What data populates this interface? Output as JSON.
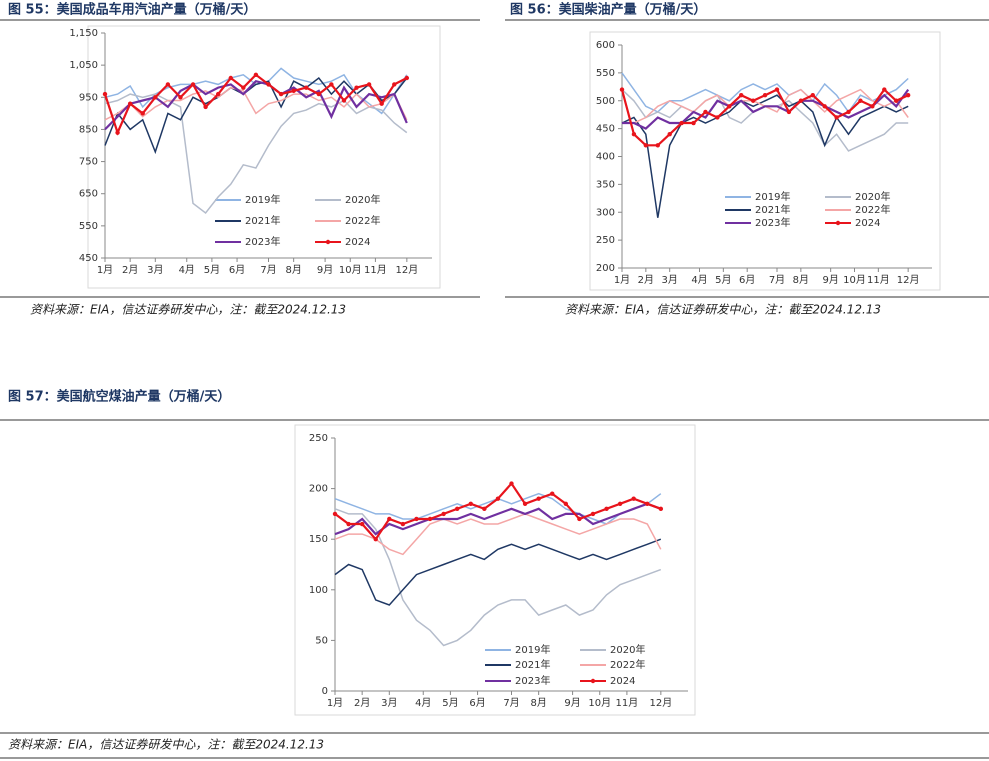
{
  "chart_data": [
    {
      "type": "line",
      "title": "图 55：美国成品车用汽油产量（万桶/天）",
      "source": "资料来源：EIA，信达证券研发中心，注：截至2024.12.13",
      "xlim": [
        1,
        53
      ],
      "xticks": [
        {
          "value": 1,
          "label": "1月"
        },
        {
          "value": 5,
          "label": "2月"
        },
        {
          "value": 9,
          "label": "3月"
        },
        {
          "value": 14,
          "label": "4月"
        },
        {
          "value": 18,
          "label": "5月"
        },
        {
          "value": 22,
          "label": "6月"
        },
        {
          "value": 27,
          "label": "7月"
        },
        {
          "value": 31,
          "label": "8月"
        },
        {
          "value": 36,
          "label": "9月"
        },
        {
          "value": 40,
          "label": "10月"
        },
        {
          "value": 44,
          "label": "11月"
        },
        {
          "value": 49,
          "label": "12月"
        }
      ],
      "ylim": [
        450,
        1150
      ],
      "yticks": [
        450,
        550,
        650,
        750,
        850,
        950,
        {
          "value": 1050,
          "label": "1,050"
        },
        {
          "value": 1150,
          "label": "1,150"
        }
      ],
      "x": [
        1,
        3,
        5,
        7,
        9,
        11,
        13,
        15,
        17,
        19,
        21,
        23,
        25,
        27,
        29,
        31,
        33,
        35,
        37,
        39,
        41,
        43,
        45,
        47,
        49
      ],
      "series": [
        {
          "name": "2019年",
          "color": "#8fb4e3",
          "values": [
            950,
            960,
            985,
            920,
            960,
            980,
            990,
            990,
            1000,
            990,
            1010,
            1020,
            990,
            1000,
            1040,
            1010,
            1000,
            990,
            1000,
            1020,
            960,
            930,
            900,
            960,
            1020
          ]
        },
        {
          "name": "2020年",
          "color": "#b4bccb",
          "values": [
            930,
            940,
            960,
            950,
            960,
            940,
            920,
            620,
            590,
            640,
            680,
            740,
            730,
            800,
            860,
            900,
            910,
            930,
            920,
            940,
            900,
            920,
            910,
            870,
            840
          ]
        },
        {
          "name": "2021年",
          "color": "#1f3864",
          "values": [
            800,
            900,
            850,
            880,
            780,
            900,
            880,
            950,
            930,
            950,
            980,
            960,
            990,
            1000,
            920,
            1000,
            980,
            1010,
            960,
            1000,
            960,
            990,
            940,
            960,
            1010
          ]
        },
        {
          "name": "2022年",
          "color": "#f4a6a6",
          "values": [
            880,
            900,
            930,
            890,
            920,
            940,
            940,
            960,
            970,
            950,
            980,
            970,
            900,
            930,
            940,
            960,
            960,
            940,
            950,
            920,
            960,
            920,
            930,
            960,
            880
          ]
        },
        {
          "name": "2023年",
          "color": "#7030a0",
          "values": [
            850,
            890,
            930,
            940,
            950,
            920,
            970,
            990,
            960,
            980,
            990,
            960,
            1000,
            990,
            960,
            980,
            950,
            970,
            890,
            980,
            920,
            960,
            950,
            960,
            870
          ]
        },
        {
          "name": "2024",
          "color": "#e8141c",
          "values": [
            960,
            840,
            930,
            900,
            950,
            990,
            950,
            990,
            920,
            960,
            1010,
            980,
            1020,
            990,
            960,
            970,
            980,
            960,
            990,
            940,
            980,
            990,
            930,
            990,
            1010
          ]
        }
      ]
    },
    {
      "type": "line",
      "title": "图 56：美国柴油产量（万桶/天）",
      "source": "资料来源：EIA，信达证券研发中心，注：截至2024.12.13",
      "xlim": [
        1,
        53
      ],
      "xticks": [
        {
          "value": 1,
          "label": "1月"
        },
        {
          "value": 5,
          "label": "2月"
        },
        {
          "value": 9,
          "label": "3月"
        },
        {
          "value": 14,
          "label": "4月"
        },
        {
          "value": 18,
          "label": "5月"
        },
        {
          "value": 22,
          "label": "6月"
        },
        {
          "value": 27,
          "label": "7月"
        },
        {
          "value": 31,
          "label": "8月"
        },
        {
          "value": 36,
          "label": "9月"
        },
        {
          "value": 40,
          "label": "10月"
        },
        {
          "value": 44,
          "label": "11月"
        },
        {
          "value": 49,
          "label": "12月"
        }
      ],
      "ylim": [
        200,
        600
      ],
      "yticks": [
        200,
        250,
        300,
        350,
        400,
        450,
        500,
        550,
        600
      ],
      "x": [
        1,
        3,
        5,
        7,
        9,
        11,
        13,
        15,
        17,
        19,
        21,
        23,
        25,
        27,
        29,
        31,
        33,
        35,
        37,
        39,
        41,
        43,
        45,
        47,
        49
      ],
      "series": [
        {
          "name": "2019年",
          "color": "#8fb4e3",
          "values": [
            550,
            520,
            490,
            480,
            500,
            500,
            510,
            520,
            510,
            500,
            520,
            530,
            520,
            530,
            510,
            520,
            500,
            530,
            510,
            480,
            510,
            500,
            510,
            520,
            540
          ]
        },
        {
          "name": "2020年",
          "color": "#b4bccb",
          "values": [
            520,
            500,
            470,
            480,
            470,
            490,
            480,
            500,
            510,
            470,
            460,
            480,
            490,
            490,
            500,
            480,
            460,
            420,
            440,
            410,
            420,
            430,
            440,
            460,
            460
          ]
        },
        {
          "name": "2021年",
          "color": "#1f3864",
          "values": [
            460,
            470,
            440,
            290,
            420,
            460,
            470,
            460,
            470,
            480,
            500,
            490,
            500,
            510,
            490,
            500,
            480,
            420,
            470,
            440,
            470,
            480,
            490,
            480,
            490
          ]
        },
        {
          "name": "2022年",
          "color": "#f4a6a6",
          "values": [
            460,
            460,
            470,
            490,
            500,
            490,
            480,
            500,
            510,
            490,
            500,
            500,
            490,
            480,
            510,
            520,
            500,
            480,
            500,
            510,
            520,
            500,
            490,
            500,
            470
          ]
        },
        {
          "name": "2023年",
          "color": "#7030a0",
          "values": [
            460,
            460,
            450,
            470,
            460,
            460,
            480,
            470,
            500,
            490,
            500,
            480,
            490,
            490,
            480,
            500,
            500,
            490,
            480,
            470,
            480,
            490,
            510,
            490,
            520
          ]
        },
        {
          "name": "2024",
          "color": "#e8141c",
          "values": [
            520,
            440,
            420,
            420,
            440,
            460,
            460,
            480,
            470,
            490,
            510,
            500,
            510,
            520,
            480,
            500,
            510,
            490,
            470,
            480,
            500,
            490,
            520,
            500,
            510
          ]
        }
      ]
    },
    {
      "type": "line",
      "title": "图 57：美国航空煤油产量（万桶/天）",
      "source": "资料来源：EIA，信达证券研发中心，注：截至2024.12.13",
      "xlim": [
        1,
        53
      ],
      "xticks": [
        {
          "value": 1,
          "label": "1月"
        },
        {
          "value": 5,
          "label": "2月"
        },
        {
          "value": 9,
          "label": "3月"
        },
        {
          "value": 14,
          "label": "4月"
        },
        {
          "value": 18,
          "label": "5月"
        },
        {
          "value": 22,
          "label": "6月"
        },
        {
          "value": 27,
          "label": "7月"
        },
        {
          "value": 31,
          "label": "8月"
        },
        {
          "value": 36,
          "label": "9月"
        },
        {
          "value": 40,
          "label": "10月"
        },
        {
          "value": 44,
          "label": "11月"
        },
        {
          "value": 49,
          "label": "12月"
        }
      ],
      "ylim": [
        0,
        250
      ],
      "yticks": [
        0,
        50,
        100,
        150,
        200,
        250
      ],
      "x": [
        1,
        3,
        5,
        7,
        9,
        11,
        13,
        15,
        17,
        19,
        21,
        23,
        25,
        27,
        29,
        31,
        33,
        35,
        37,
        39,
        41,
        43,
        45,
        47,
        49
      ],
      "series": [
        {
          "name": "2019年",
          "color": "#8fb4e3",
          "values": [
            190,
            185,
            180,
            175,
            175,
            170,
            170,
            175,
            180,
            185,
            180,
            185,
            190,
            185,
            190,
            195,
            190,
            180,
            175,
            170,
            165,
            175,
            180,
            185,
            195
          ]
        },
        {
          "name": "2020年",
          "color": "#b4bccb",
          "values": [
            180,
            175,
            175,
            160,
            130,
            90,
            70,
            60,
            45,
            50,
            60,
            75,
            85,
            90,
            90,
            75,
            80,
            85,
            75,
            80,
            95,
            105,
            110,
            115,
            120
          ]
        },
        {
          "name": "2021年",
          "color": "#1f3864",
          "values": [
            115,
            125,
            120,
            90,
            85,
            100,
            115,
            120,
            125,
            130,
            135,
            130,
            140,
            145,
            140,
            145,
            140,
            135,
            130,
            135,
            130,
            135,
            140,
            145,
            150
          ]
        },
        {
          "name": "2022年",
          "color": "#f4a6a6",
          "values": [
            150,
            155,
            155,
            150,
            140,
            135,
            150,
            165,
            170,
            165,
            170,
            165,
            165,
            170,
            175,
            170,
            165,
            160,
            155,
            160,
            165,
            170,
            170,
            165,
            140
          ]
        },
        {
          "name": "2023年",
          "color": "#7030a0",
          "values": [
            155,
            160,
            170,
            155,
            165,
            160,
            165,
            170,
            170,
            170,
            175,
            170,
            175,
            180,
            175,
            180,
            170,
            175,
            175,
            165,
            170,
            175,
            180,
            185,
            180
          ]
        },
        {
          "name": "2024",
          "color": "#e8141c",
          "values": [
            175,
            165,
            165,
            150,
            170,
            165,
            170,
            170,
            175,
            180,
            185,
            180,
            190,
            205,
            185,
            190,
            195,
            185,
            170,
            175,
            180,
            185,
            190,
            185,
            180
          ]
        }
      ]
    }
  ]
}
